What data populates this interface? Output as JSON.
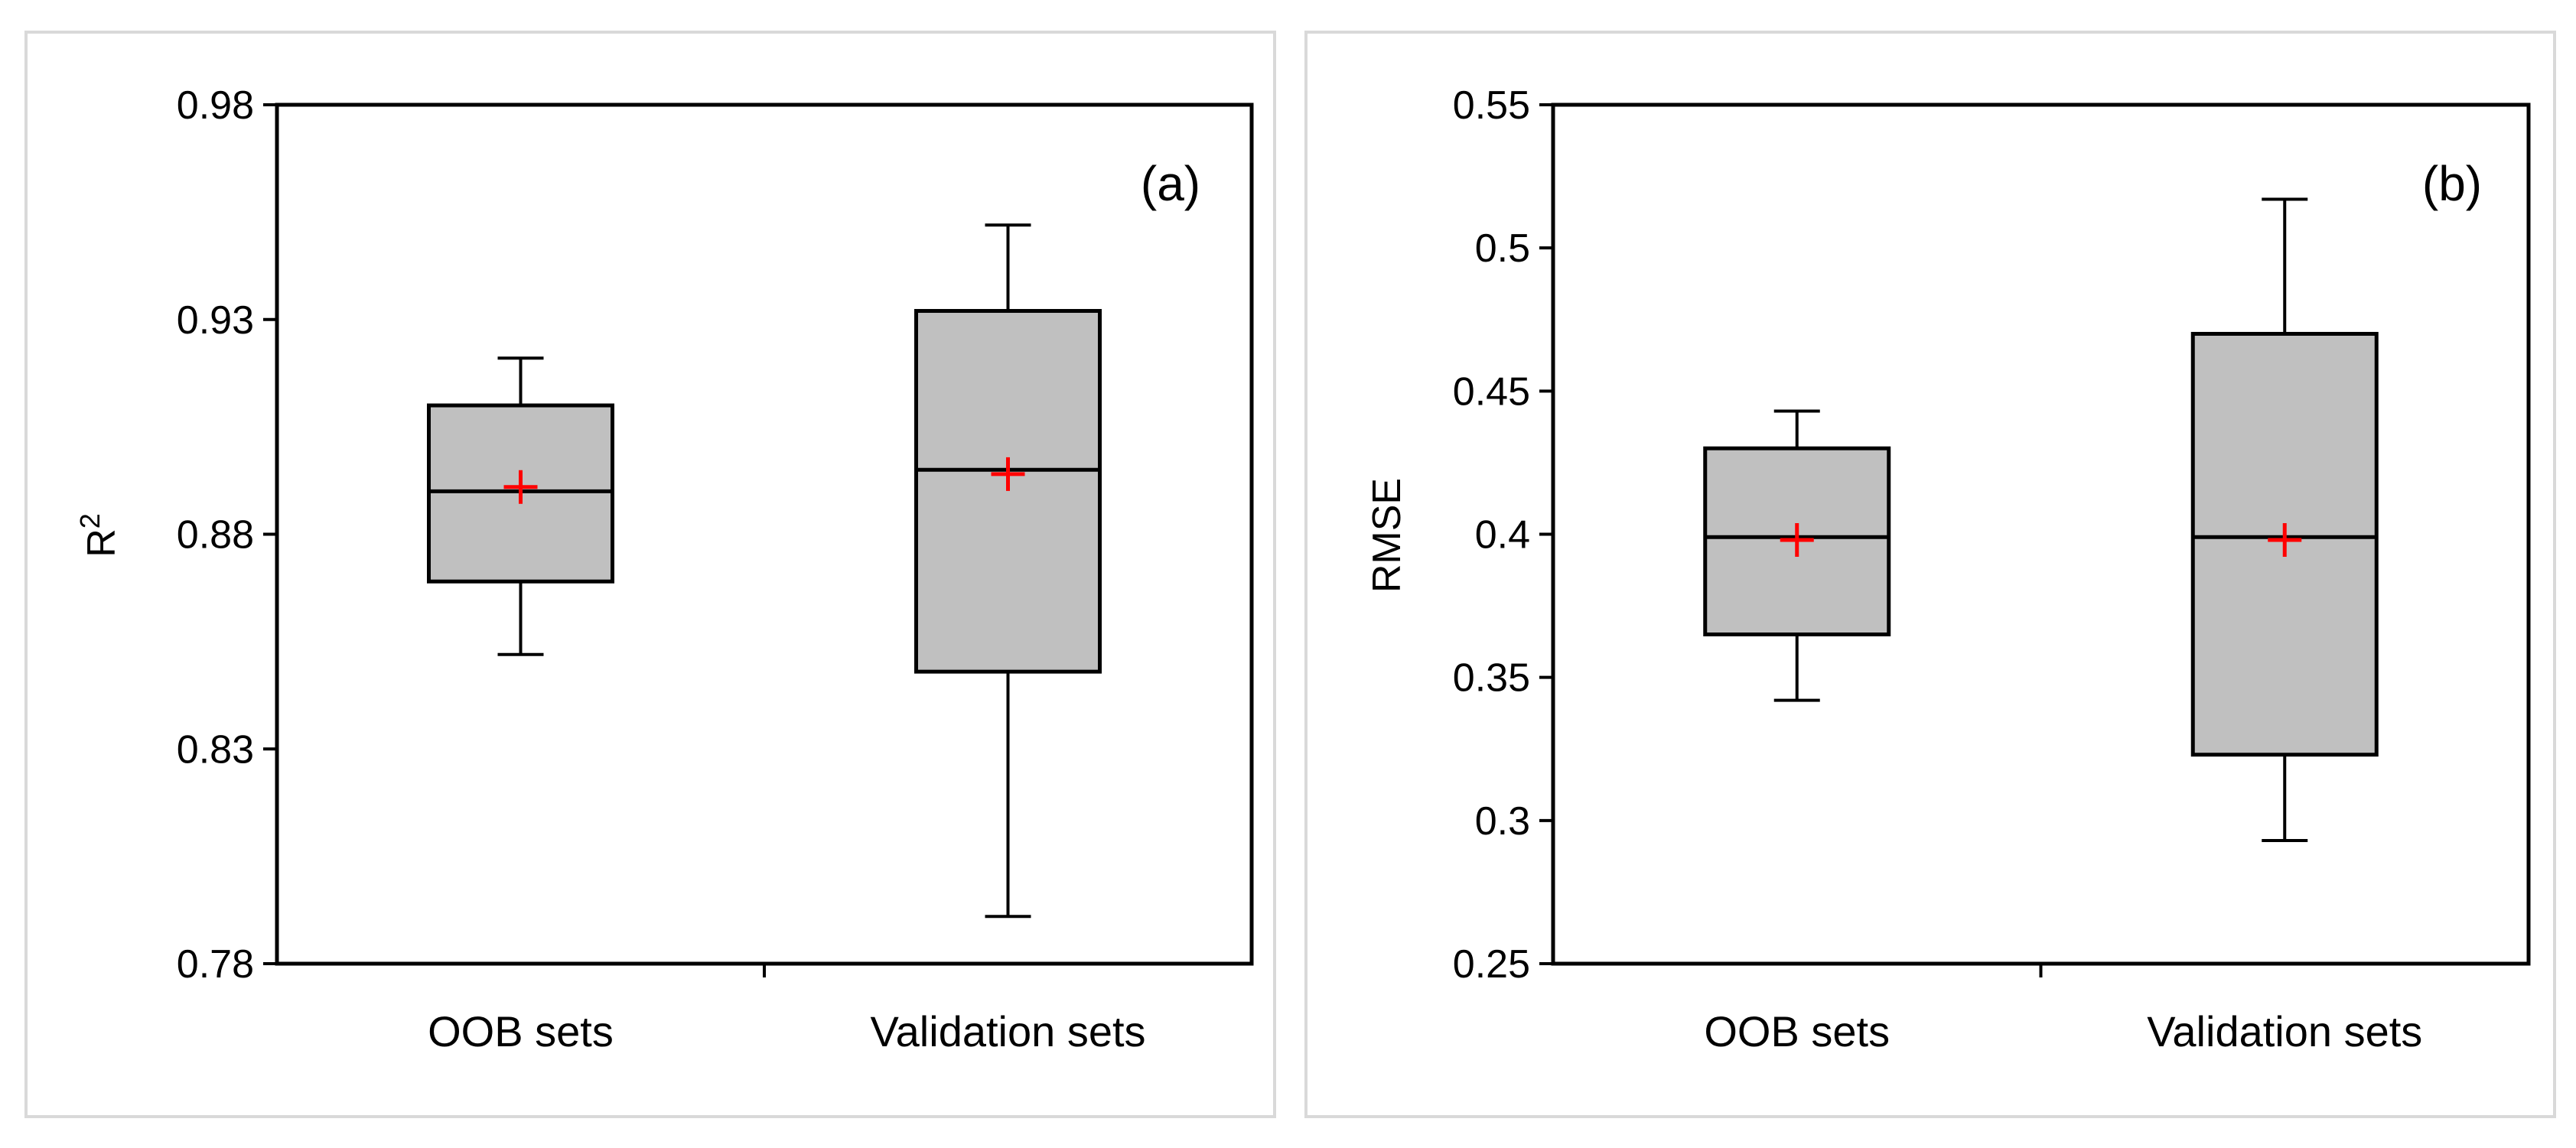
{
  "chart_data": [
    {
      "type": "box",
      "panel_label": "(a)",
      "ylabel": "R2",
      "ylabel_base": "R",
      "ylabel_sup": "2",
      "ylim": [
        0.78,
        0.98
      ],
      "yticks": [
        0.78,
        0.83,
        0.88,
        0.93,
        0.98
      ],
      "ytick_labels": [
        "0.78",
        "0.83",
        "0.88",
        "0.93",
        "0.98"
      ],
      "categories": [
        "OOB sets",
        "Validation sets"
      ],
      "boxes": [
        {
          "name": "OOB sets",
          "whisker_low": 0.852,
          "q1": 0.869,
          "median": 0.89,
          "q3": 0.91,
          "whisker_high": 0.921,
          "mean": 0.891
        },
        {
          "name": "Validation sets",
          "whisker_low": 0.791,
          "q1": 0.848,
          "median": 0.895,
          "q3": 0.932,
          "whisker_high": 0.952,
          "mean": 0.894
        }
      ],
      "box_color": "#c0c0c0",
      "mean_marker_color": "#ff0000"
    },
    {
      "type": "box",
      "panel_label": "(b)",
      "ylabel": "RMSE",
      "ylim": [
        0.25,
        0.55
      ],
      "yticks": [
        0.25,
        0.3,
        0.35,
        0.4,
        0.45,
        0.5,
        0.55
      ],
      "ytick_labels": [
        "0.25",
        "0.3",
        "0.35",
        "0.4",
        "0.45",
        "0.5",
        "0.55"
      ],
      "categories": [
        "OOB sets",
        "Validation sets"
      ],
      "boxes": [
        {
          "name": "OOB sets",
          "whisker_low": 0.342,
          "q1": 0.365,
          "median": 0.399,
          "q3": 0.43,
          "whisker_high": 0.443,
          "mean": 0.398
        },
        {
          "name": "Validation sets",
          "whisker_low": 0.293,
          "q1": 0.323,
          "median": 0.399,
          "q3": 0.47,
          "whisker_high": 0.517,
          "mean": 0.398
        }
      ],
      "box_color": "#c0c0c0",
      "mean_marker_color": "#ff0000"
    }
  ]
}
